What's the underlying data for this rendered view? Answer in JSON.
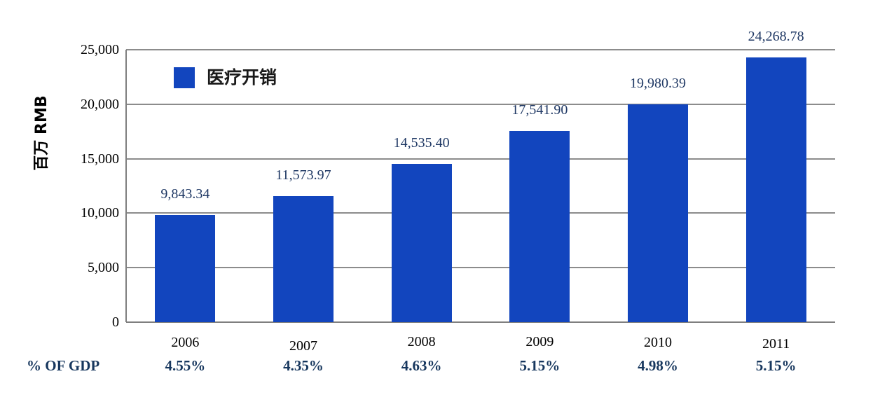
{
  "chart_data": {
    "type": "bar",
    "title": "",
    "categories": [
      "2006",
      "2007",
      "2008",
      "2009",
      "2010",
      "2011"
    ],
    "series": [
      {
        "name": "医疗开销",
        "values": [
          9843.34,
          11573.97,
          14535.4,
          17541.9,
          19980.39,
          24268.78
        ]
      }
    ],
    "value_labels": [
      "9,843.34",
      "11,573.97",
      "14,535.40",
      "17,541.90",
      "19,980.39",
      "24,268.78"
    ],
    "xlabel": "",
    "ylabel": "百万 RMB",
    "ylim": [
      0,
      25000
    ],
    "yticks": [
      0,
      5000,
      10000,
      15000,
      20000,
      25000
    ],
    "ytick_labels": [
      "0",
      "5,000",
      "10,000",
      "15,000",
      "20,000",
      "25,000"
    ],
    "grid": "horizontal",
    "legend": {
      "label": "医疗开销",
      "position": "top-left-inside"
    },
    "gdp_row": {
      "label": "% OF GDP",
      "values": [
        "4.55%",
        "4.35%",
        "4.63%",
        "5.15%",
        "4.98%",
        "5.15%"
      ]
    }
  },
  "colors": {
    "bar": "#1245BE",
    "data_label": "#1F3864",
    "gdp_text": "#17375E",
    "axis_text": "#000000",
    "gridline": "#8C8C8C",
    "axis_line": "#7F7F7F",
    "background": "#FFFFFF"
  }
}
